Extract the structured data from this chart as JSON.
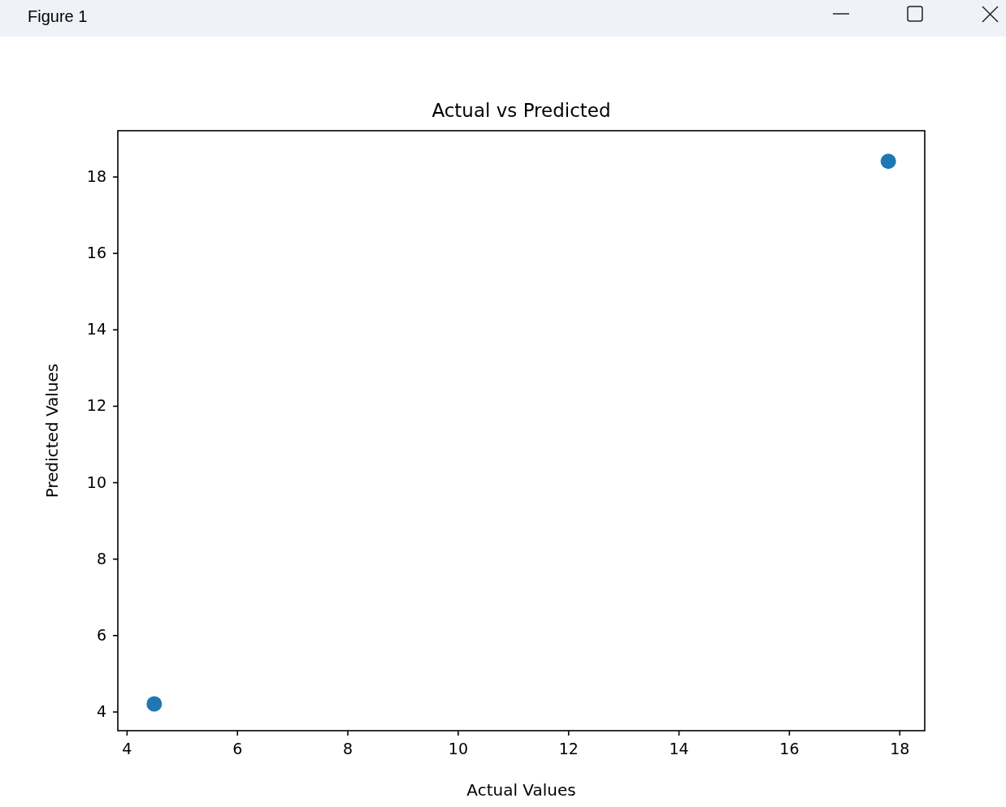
{
  "chart_data": {
    "type": "scatter",
    "title": "Actual vs Predicted",
    "xlabel": "Actual Values",
    "ylabel": "Predicted Values",
    "x": [
      4.5,
      17.8
    ],
    "values": [
      4.2,
      18.4
    ],
    "color": "#1f77b4",
    "marker": "circle",
    "xlim": [
      3.84,
      18.46
    ],
    "ylim": [
      3.5,
      19.2
    ],
    "xticks": [
      4,
      6,
      8,
      10,
      12,
      14,
      16,
      18
    ],
    "yticks": [
      4,
      6,
      8,
      10,
      12,
      14,
      16,
      18
    ],
    "annotations": [
      "Figure 1"
    ]
  }
}
